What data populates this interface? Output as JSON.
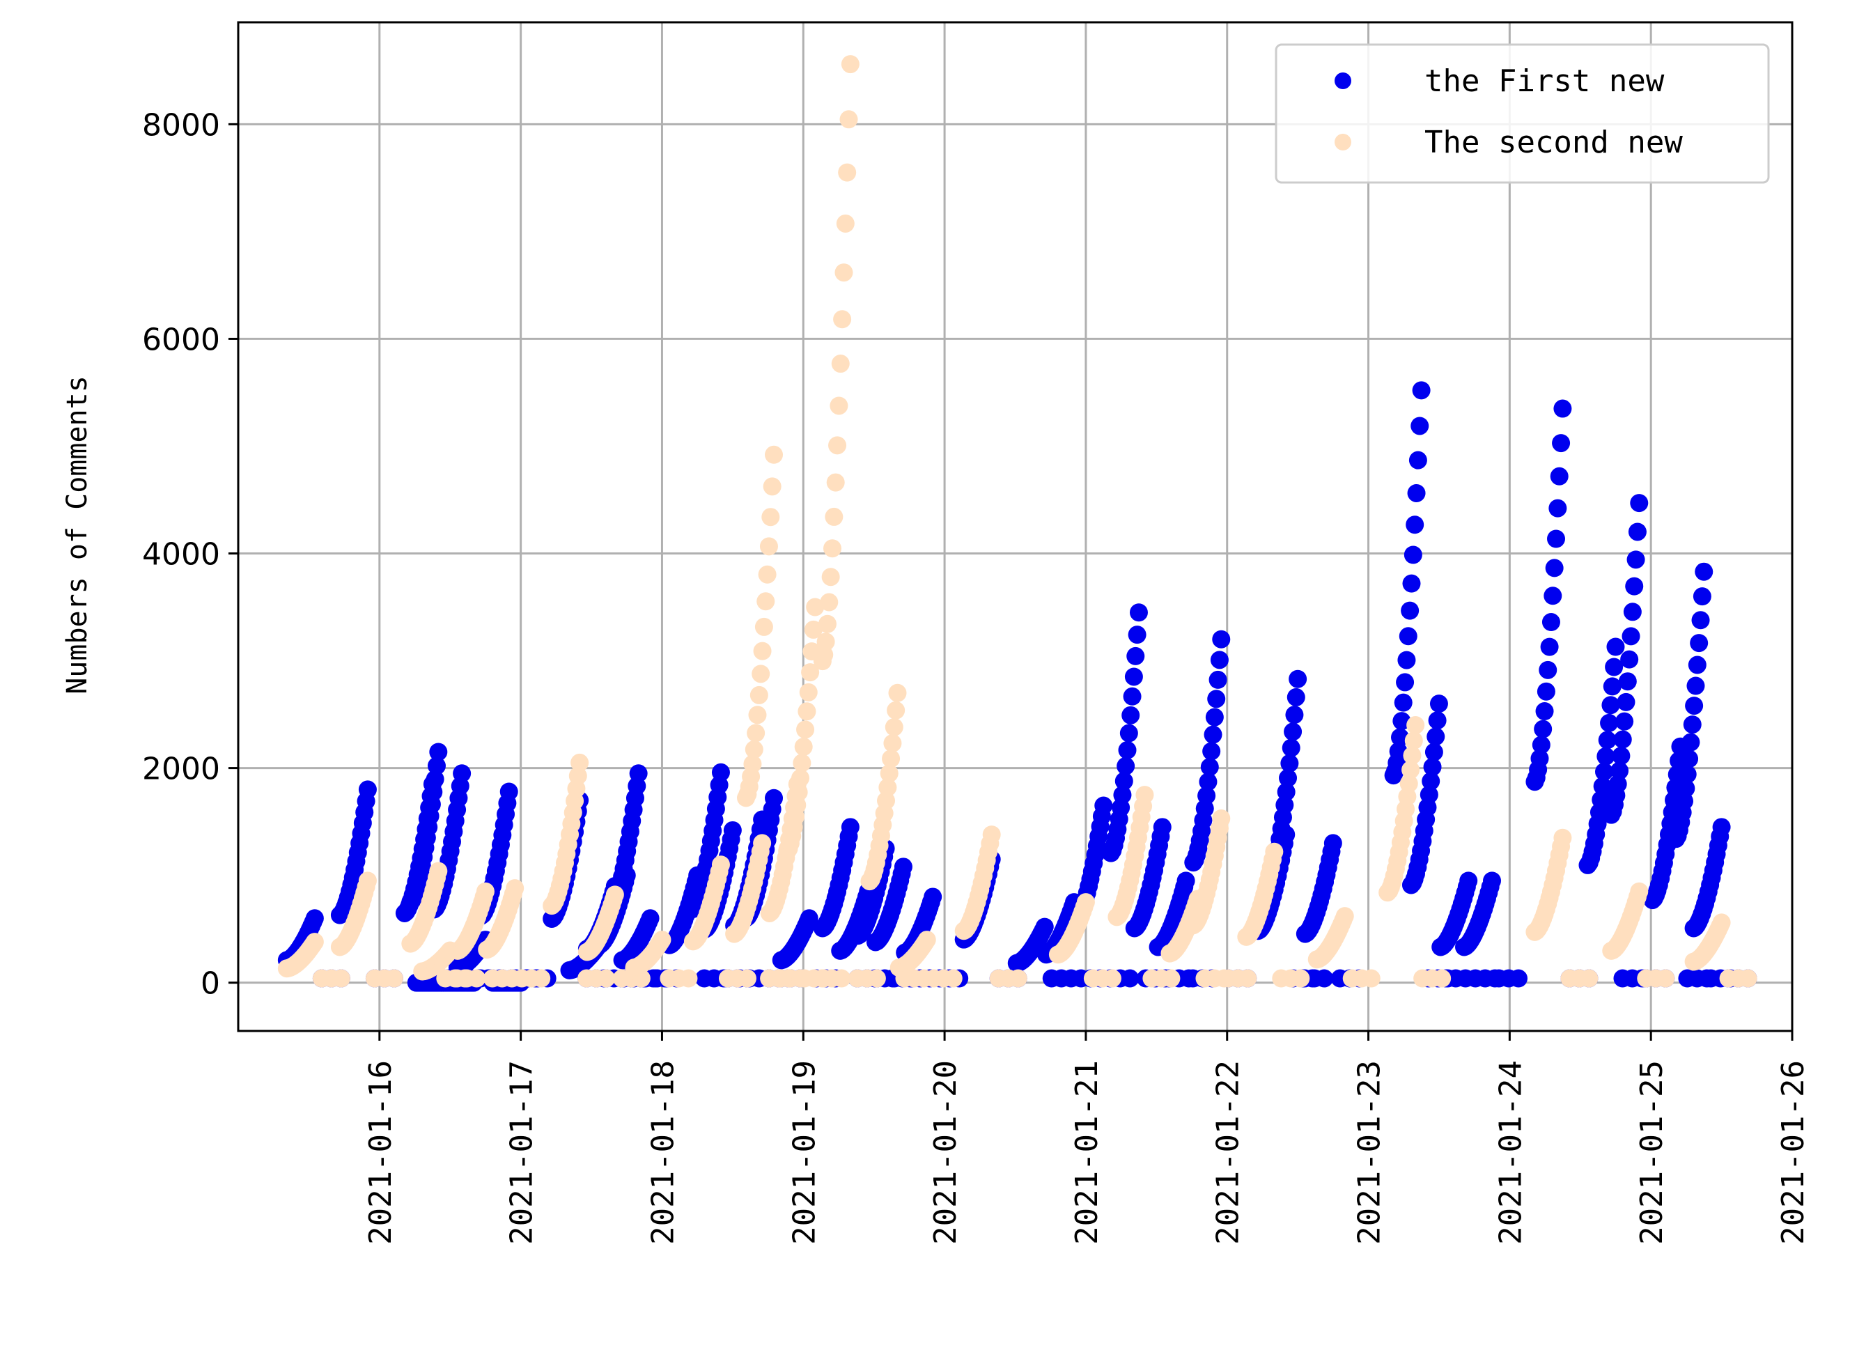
{
  "chart_data": {
    "type": "scatter",
    "title": "",
    "xlabel": "",
    "ylabel": "Numbers of Comments",
    "grid": true,
    "legend_position": "top-right",
    "xlim": [
      "2021-01-15T00:00",
      "2021-01-26T00:00"
    ],
    "ylim": [
      -450,
      8950
    ],
    "x_ticks": [
      "2021-01-16",
      "2021-01-17",
      "2021-01-18",
      "2021-01-19",
      "2021-01-20",
      "2021-01-21",
      "2021-01-22",
      "2021-01-23",
      "2021-01-24",
      "2021-01-25",
      "2021-01-26"
    ],
    "y_ticks": [
      0,
      2000,
      4000,
      6000,
      8000
    ],
    "series": [
      {
        "name": "the First new",
        "color": "#0000ee",
        "bursts": [
          {
            "x": "2021-01-15T13:00",
            "y": 600
          },
          {
            "x": "2021-01-15T22:00",
            "y": 1800
          },
          {
            "x": "2021-01-16T09:00",
            "y": 1850
          },
          {
            "x": "2021-01-16T10:00",
            "y": 2150
          },
          {
            "x": "2021-01-16T11:00",
            "y": 0
          },
          {
            "x": "2021-01-16T14:00",
            "y": 1950
          },
          {
            "x": "2021-01-16T16:00",
            "y": 0
          },
          {
            "x": "2021-01-16T18:00",
            "y": 400
          },
          {
            "x": "2021-01-16T22:00",
            "y": 1780
          },
          {
            "x": "2021-01-17T00:00",
            "y": 0
          },
          {
            "x": "2021-01-17T10:00",
            "y": 1700
          },
          {
            "x": "2021-01-17T13:00",
            "y": 330
          },
          {
            "x": "2021-01-17T16:00",
            "y": 900
          },
          {
            "x": "2021-01-17T18:00",
            "y": 1000
          },
          {
            "x": "2021-01-17T20:00",
            "y": 1950
          },
          {
            "x": "2021-01-17T22:00",
            "y": 600
          },
          {
            "x": "2021-01-18T06:00",
            "y": 1000
          },
          {
            "x": "2021-01-18T10:00",
            "y": 1960
          },
          {
            "x": "2021-01-18T12:00",
            "y": 1420
          },
          {
            "x": "2021-01-18T17:00",
            "y": 1520
          },
          {
            "x": "2021-01-18T19:00",
            "y": 1720
          },
          {
            "x": "2021-01-19T01:00",
            "y": 600
          },
          {
            "x": "2021-01-19T08:00",
            "y": 1450
          },
          {
            "x": "2021-01-19T11:00",
            "y": 850
          },
          {
            "x": "2021-01-19T14:00",
            "y": 1250
          },
          {
            "x": "2021-01-19T17:00",
            "y": 1080
          },
          {
            "x": "2021-01-19T22:00",
            "y": 800
          },
          {
            "x": "2021-01-20T08:00",
            "y": 1150
          },
          {
            "x": "2021-01-20T17:00",
            "y": 520
          },
          {
            "x": "2021-01-20T22:00",
            "y": 750
          },
          {
            "x": "2021-01-21T03:00",
            "y": 1650
          },
          {
            "x": "2021-01-21T09:00",
            "y": 3450
          },
          {
            "x": "2021-01-21T13:00",
            "y": 1450
          },
          {
            "x": "2021-01-21T17:00",
            "y": 950
          },
          {
            "x": "2021-01-21T23:00",
            "y": 3200
          },
          {
            "x": "2021-01-22T10:00",
            "y": 1380
          },
          {
            "x": "2021-01-22T12:00",
            "y": 2830
          },
          {
            "x": "2021-01-22T18:00",
            "y": 1300
          },
          {
            "x": "2021-01-23T09:00",
            "y": 5520
          },
          {
            "x": "2021-01-23T12:00",
            "y": 2600
          },
          {
            "x": "2021-01-23T17:00",
            "y": 950
          },
          {
            "x": "2021-01-23T21:00",
            "y": 950
          },
          {
            "x": "2021-01-24T09:00",
            "y": 5350
          },
          {
            "x": "2021-01-24T18:00",
            "y": 3130
          },
          {
            "x": "2021-01-24T22:00",
            "y": 4470
          },
          {
            "x": "2021-01-25T05:00",
            "y": 2200
          },
          {
            "x": "2021-01-25T09:00",
            "y": 3830
          },
          {
            "x": "2021-01-25T12:00",
            "y": 1450
          }
        ]
      },
      {
        "name": "The second new",
        "color": "#ffdfbf",
        "bursts": [
          {
            "x": "2021-01-15T13:00",
            "y": 380
          },
          {
            "x": "2021-01-15T22:00",
            "y": 950
          },
          {
            "x": "2021-01-16T10:00",
            "y": 1040
          },
          {
            "x": "2021-01-16T12:00",
            "y": 300
          },
          {
            "x": "2021-01-16T18:00",
            "y": 850
          },
          {
            "x": "2021-01-16T23:00",
            "y": 880
          },
          {
            "x": "2021-01-17T10:00",
            "y": 2050
          },
          {
            "x": "2021-01-17T16:00",
            "y": 820
          },
          {
            "x": "2021-01-18T00:00",
            "y": 400
          },
          {
            "x": "2021-01-18T10:00",
            "y": 1100
          },
          {
            "x": "2021-01-18T17:00",
            "y": 1300
          },
          {
            "x": "2021-01-18T19:00",
            "y": 4920
          },
          {
            "x": "2021-01-18T23:00",
            "y": 1850
          },
          {
            "x": "2021-01-19T02:00",
            "y": 3500
          },
          {
            "x": "2021-01-19T08:00",
            "y": 8560
          },
          {
            "x": "2021-01-19T16:00",
            "y": 2700
          },
          {
            "x": "2021-01-19T21:00",
            "y": 400
          },
          {
            "x": "2021-01-20T08:00",
            "y": 1380
          },
          {
            "x": "2021-01-21T00:00",
            "y": 750
          },
          {
            "x": "2021-01-21T10:00",
            "y": 1750
          },
          {
            "x": "2021-01-21T19:00",
            "y": 780
          },
          {
            "x": "2021-01-21T23:00",
            "y": 1530
          },
          {
            "x": "2021-01-22T08:00",
            "y": 1220
          },
          {
            "x": "2021-01-22T20:00",
            "y": 620
          },
          {
            "x": "2021-01-23T08:00",
            "y": 2400
          },
          {
            "x": "2021-01-24T09:00",
            "y": 1350
          },
          {
            "x": "2021-01-24T22:00",
            "y": 850
          },
          {
            "x": "2021-01-25T12:00",
            "y": 560
          }
        ]
      }
    ]
  }
}
